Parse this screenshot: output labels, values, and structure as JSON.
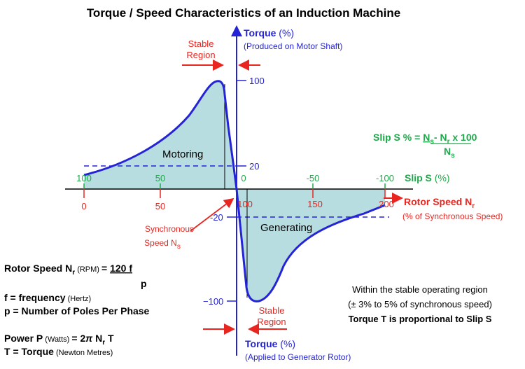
{
  "title": "Torque / Speed Characteristics of an Induction Machine",
  "torque_axis": {
    "top_label_bold": "Torque",
    "top_label_unit": " (%)",
    "top_label_sub": "(Produced on Motor Shaft)",
    "bottom_label_bold": "Torque",
    "bottom_label_unit": " (%)",
    "bottom_label_sub": "(Applied to Generator Rotor)",
    "ticks": {
      "p100": "100",
      "p20": "20",
      "m20": "-20",
      "m100": "−100"
    }
  },
  "slip_axis": {
    "label_bold": "Slip S",
    "label_unit": " (%)",
    "ticks": {
      "s100": "100",
      "s50": "50",
      "s0": "0",
      "sm50": "-50",
      "sm100": "-100"
    }
  },
  "speed_axis": {
    "label_bold": "Rotor Speed N",
    "label_sub": "r",
    "label_note": "(% of Synchronous Speed)",
    "ticks": {
      "v0": "0",
      "v50": "50",
      "v100": "100",
      "v150": "150",
      "v200": "200"
    }
  },
  "regions": {
    "motoring": "Motoring",
    "generating": "Generating",
    "stable_top_1": "Stable",
    "stable_top_2": "Region",
    "stable_bot_1": "Stable",
    "stable_bot_2": "Region"
  },
  "sync_speed": {
    "line1": "Synchronous",
    "line2": "Speed N",
    "sub": "s"
  },
  "slip_formula": {
    "lhs": "Slip S % = ",
    "ns": "N",
    "ns_sub": "s",
    "dash": "- N",
    "nr_sub": "r",
    "times": " x 100",
    "den": "N",
    "den_sub": "s"
  },
  "formulas": {
    "rotor_speed_a": "Rotor Speed N",
    "rotor_speed_sub": "r",
    "rotor_speed_unit": " (RPM) ",
    "rotor_speed_eq": "= ",
    "rotor_speed_num": "120 f",
    "rotor_speed_den": "p",
    "freq_a": "f =  frequency",
    "freq_unit": " (Hertz)",
    "poles": "p = Number of Poles Per Phase",
    "power_a": "Power P",
    "power_unit": " (Watts) ",
    "power_b": "= 2",
    "power_pi": "π",
    "power_c": " N",
    "power_sub": "r",
    "power_d": " T",
    "torque_a": "T = Torque",
    "torque_unit": " (Newton Metres)"
  },
  "note": {
    "line1": "Within the stable operating region",
    "line2": "(± 3% to 5% of synchronous speed)",
    "line3": "Torque T is proportional to Slip S"
  },
  "colors": {
    "curve": "#2424d6",
    "fill": "#b7dde0",
    "axis_red": "#e8251f",
    "slip_green": "#1fa84a"
  }
}
